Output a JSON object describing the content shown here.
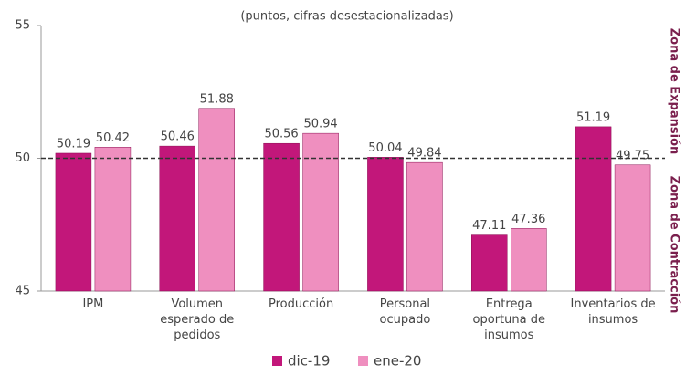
{
  "chart_data": {
    "type": "bar",
    "subtitle": "(puntos, cifras desestacionalizadas)",
    "categories": [
      "IPM",
      "Volumen esperado de pedidos",
      "Producción",
      "Personal ocupado",
      "Entrega oportuna de insumos",
      "Inventarios de insumos"
    ],
    "series": [
      {
        "name": "dic-19",
        "color": "#c2177a",
        "values": [
          50.19,
          50.46,
          50.56,
          50.04,
          47.11,
          51.19
        ]
      },
      {
        "name": "ene-20",
        "color": "#ef8fbf",
        "values": [
          50.42,
          51.88,
          50.94,
          49.84,
          47.36,
          49.75
        ]
      }
    ],
    "ylim": [
      45,
      55
    ],
    "yticks": [
      45,
      50,
      55
    ],
    "reference_line": 50,
    "zone_labels": [
      "Zona de Expansión",
      "Zona de Contracción"
    ],
    "legend": "bottom"
  }
}
